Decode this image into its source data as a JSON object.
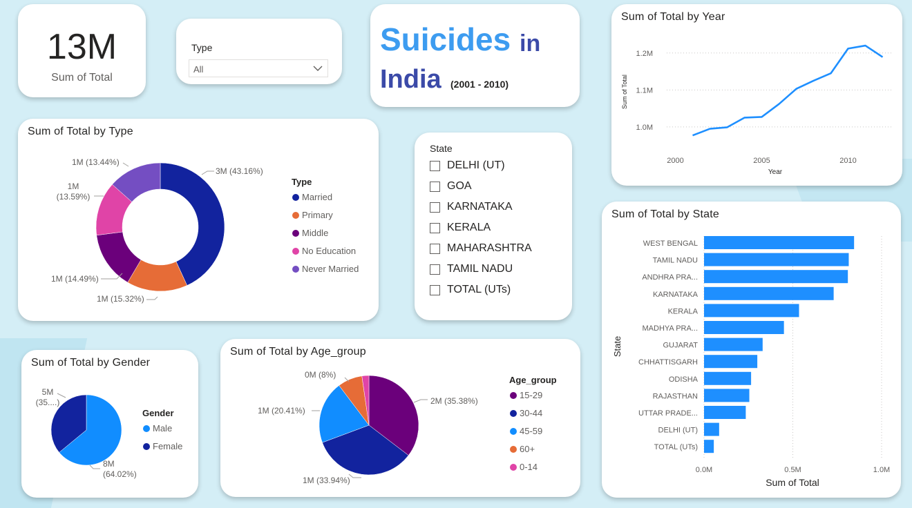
{
  "colors": {
    "background": "#d4eef6",
    "accent_blue": "#1e8fff",
    "navy": "#3b4aa8",
    "light_blue": "#3d9cf0"
  },
  "kpi": {
    "value": "13M",
    "label": "Sum of Total"
  },
  "type_slicer": {
    "label": "Type",
    "selected": "All"
  },
  "header": {
    "word1": "Suicides",
    "word2": "in",
    "word3": "India",
    "years": "(2001 - 2010)"
  },
  "state_slicer": {
    "label": "State",
    "items": [
      "DELHI (UT)",
      "GOA",
      "KARNATAKA",
      "KERALA",
      "MAHARASHTRA",
      "TAMIL NADU",
      "TOTAL (UTs)"
    ]
  },
  "chart_data": [
    {
      "type": "line",
      "title": "Sum of Total by Year",
      "xlabel": "Year",
      "ylabel": "Sum of Total",
      "x": [
        2001,
        2002,
        2003,
        2004,
        2005,
        2006,
        2007,
        2008,
        2009,
        2010,
        2011,
        2012
      ],
      "series": [
        {
          "values": [
            0.977,
            0.995,
            0.999,
            1.025,
            1.027,
            1.062,
            1.103,
            1.125,
            1.145,
            1.212,
            1.22,
            1.189
          ]
        }
      ],
      "ylim": [
        0.94,
        1.25
      ],
      "yticks": [
        {
          "v": 1.0,
          "label": "1.0M"
        },
        {
          "v": 1.1,
          "label": "1.1M"
        },
        {
          "v": 1.2,
          "label": "1.2M"
        }
      ],
      "xlim": [
        1999.5,
        2012.5
      ],
      "xticks": [
        {
          "v": 2000,
          "label": "2000"
        },
        {
          "v": 2005,
          "label": "2005"
        },
        {
          "v": 2010,
          "label": "2010"
        }
      ],
      "color": "#1e8fff",
      "grid": true
    },
    {
      "type": "pie",
      "title": "Sum of Total by Type",
      "legend_title": "Type",
      "categories": [
        "Married",
        "Primary",
        "Middle",
        "No Education",
        "Never Married"
      ],
      "values": [
        43.16,
        15.32,
        14.49,
        13.59,
        13.44
      ],
      "labels": [
        "3M (43.16%)",
        "1M (15.32%)",
        "1M (14.49%)",
        "1M (13.59%)",
        "1M (13.44%)"
      ],
      "colors": [
        "#12239e",
        "#e66c37",
        "#6b007b",
        "#e044a7",
        "#744ec2"
      ],
      "donut": true
    },
    {
      "type": "pie",
      "title": "Sum of Total by Gender",
      "legend_title": "Gender",
      "categories": [
        "Male",
        "Female"
      ],
      "values": [
        64.02,
        35.98
      ],
      "labels": [
        "8M (64.02%)",
        "5M (35....)"
      ],
      "colors": [
        "#118dff",
        "#12239e"
      ]
    },
    {
      "type": "pie",
      "title": "Sum of Total by Age_group",
      "legend_title": "Age_group",
      "categories": [
        "15-29",
        "30-44",
        "45-59",
        "60+",
        "0-14"
      ],
      "values": [
        35.38,
        33.94,
        20.41,
        8.0,
        2.27
      ],
      "labels": [
        "2M (35.38%)",
        "1M (33.94%)",
        "1M (20.41%)",
        "0M (8%)",
        ""
      ],
      "colors": [
        "#6b007b",
        "#12239e",
        "#118dff",
        "#e66c37",
        "#e044a7"
      ]
    },
    {
      "type": "bar",
      "orientation": "horizontal",
      "title": "Sum of Total by State",
      "xlabel": "Sum of Total",
      "ylabel": "State",
      "categories": [
        "WEST BENGAL",
        "TAMIL NADU",
        "ANDHRA PRA...",
        "KARNATAKA",
        "KERALA",
        "MADHYA PRA...",
        "GUJARAT",
        "CHHATTISGARH",
        "ODISHA",
        "RAJASTHAN",
        "UTTAR PRADE...",
        "DELHI (UT)",
        "TOTAL (UTs)"
      ],
      "values": [
        0.845,
        0.815,
        0.81,
        0.73,
        0.535,
        0.45,
        0.33,
        0.3,
        0.265,
        0.255,
        0.235,
        0.085,
        0.055
      ],
      "xlim": [
        0,
        1.0
      ],
      "xticks": [
        {
          "v": 0,
          "label": "0.0M"
        },
        {
          "v": 0.5,
          "label": "0.5M"
        },
        {
          "v": 1.0,
          "label": "1.0M"
        }
      ],
      "color": "#1e8fff"
    }
  ]
}
